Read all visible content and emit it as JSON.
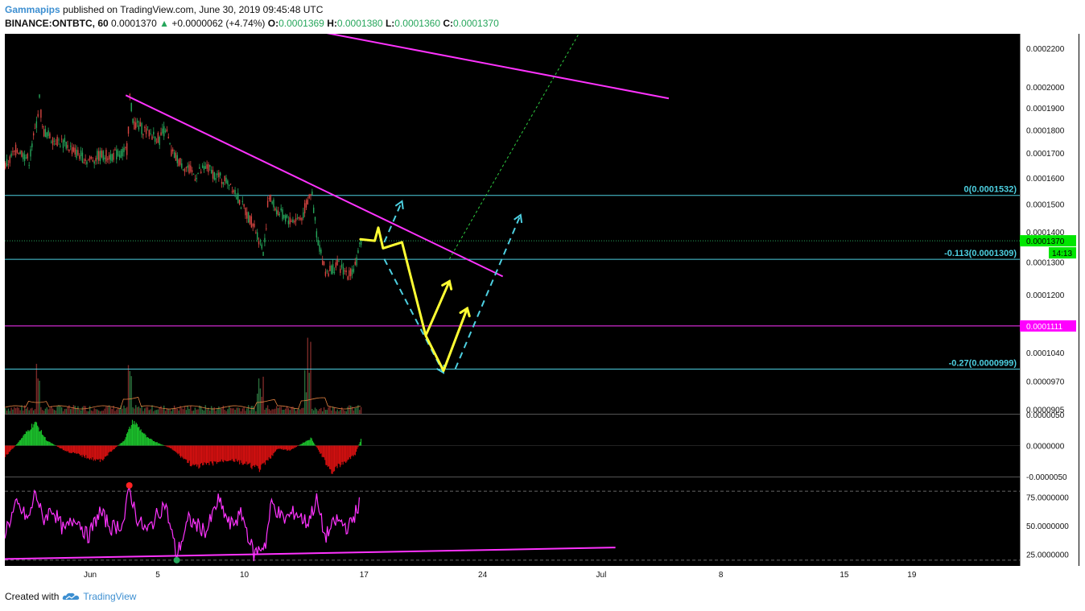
{
  "header": {
    "author": "Gammapips",
    "published_text": "published on TradingView.com, June 30, 2019 09:45:48 UTC",
    "symbol": "BINANCE:ONTBTC, 60",
    "last": "0.0001370",
    "change_arrow": "▲",
    "change": "+0.0000062 (+4.74%)",
    "o_label": "O:",
    "o_value": "0.0001369",
    "h_label": "H:",
    "h_value": "0.0001380",
    "l_label": "L:",
    "l_value": "0.0001360",
    "c_label": "C:",
    "c_value": "0.0001370"
  },
  "footer": {
    "created_with": "Created with",
    "brand": "TradingView",
    "logo_icon": "tradingview-cloud-icon"
  },
  "colors": {
    "background": "#000000",
    "up": "#26a65b",
    "down": "#d64541",
    "magenta": "#ff33ff",
    "teal": "#4dd0e1",
    "yellow": "#ffff33",
    "green_dotted": "#2ecc40",
    "label_green": "#00e600",
    "label_magenta": "#ff00ff"
  },
  "chart_data": [
    {
      "type": "line",
      "pane": "price",
      "scale": "log",
      "ylim": [
        8.95e-05,
        0.000228
      ],
      "y_tick_labels": [
        "0.0002200",
        "0.0002000",
        "0.0001900",
        "0.0001800",
        "0.0001700",
        "0.0001600",
        "0.0001500",
        "0.0001400",
        "0.0001300",
        "0.0001200",
        "0.0001040",
        "0.0000970",
        "0.0000905"
      ],
      "x_ticks": [
        "Jun",
        "5",
        "10",
        "17",
        "24",
        "Jul",
        "8",
        "15",
        "19"
      ],
      "current_price_label": "0.0001370",
      "countdown_label": "14:13",
      "level_label": "0.0001111",
      "fib_levels": [
        {
          "name": "0",
          "label": "0(0.0001532)",
          "value": 0.0001532
        },
        {
          "name": "-0.113",
          "label": "-0.113(0.0001309)",
          "value": 0.0001309
        },
        {
          "name": "-0.27",
          "label": "-0.27(0.0000999)",
          "value": 9.99e-05
        }
      ],
      "horizontal_line": 0.0001111,
      "price_path": [
        {
          "day": 0,
          "value": 0.0001645
        },
        {
          "day": 1,
          "value": 0.000172
        },
        {
          "day": 2,
          "value": 0.000167
        },
        {
          "day": 2.6,
          "value": 0.000182
        },
        {
          "day": 2.9,
          "value": 0.000195
        },
        {
          "day": 3.1,
          "value": 0.00018
        },
        {
          "day": 4,
          "value": 0.000176
        },
        {
          "day": 5,
          "value": 0.000174
        },
        {
          "day": 6,
          "value": 0.00017
        },
        {
          "day": 7,
          "value": 0.000167
        },
        {
          "day": 8,
          "value": 0.000169
        },
        {
          "day": 9,
          "value": 0.000169
        },
        {
          "day": 10,
          "value": 0.00017
        },
        {
          "day": 10.3,
          "value": 0.000172
        },
        {
          "day": 10.5,
          "value": 0.000195
        },
        {
          "day": 10.8,
          "value": 0.000183
        },
        {
          "day": 12,
          "value": 0.000179
        },
        {
          "day": 13,
          "value": 0.000176
        },
        {
          "day": 13.5,
          "value": 0.000181
        },
        {
          "day": 14,
          "value": 0.00017
        },
        {
          "day": 15,
          "value": 0.000165
        },
        {
          "day": 16,
          "value": 0.000161
        },
        {
          "day": 17,
          "value": 0.000164
        },
        {
          "day": 18,
          "value": 0.00016
        },
        {
          "day": 19,
          "value": 0.000158
        },
        {
          "day": 20,
          "value": 0.000149
        },
        {
          "day": 21,
          "value": 0.000142
        },
        {
          "day": 21.8,
          "value": 0.000133
        },
        {
          "day": 22.2,
          "value": 0.000153
        },
        {
          "day": 23,
          "value": 0.000147
        },
        {
          "day": 24,
          "value": 0.000144
        },
        {
          "day": 25,
          "value": 0.000145
        },
        {
          "day": 25.8,
          "value": 0.000155
        },
        {
          "day": 26.3,
          "value": 0.000138
        },
        {
          "day": 27,
          "value": 0.000127
        },
        {
          "day": 28,
          "value": 0.000129
        },
        {
          "day": 29,
          "value": 0.000126
        },
        {
          "day": 29.7,
          "value": 0.000131
        },
        {
          "day": 30,
          "value": 0.000137
        }
      ],
      "trendlines": [
        {
          "name": "descending-resistance",
          "from": {
            "day": 10.2,
            "value": 0.000196
          },
          "to": {
            "day": 42,
            "value": 0.0001255
          }
        },
        {
          "name": "upper-resistance",
          "from": {
            "day": 26.7,
            "value": 0.000229
          },
          "to": {
            "day": 56,
            "value": 0.0001945
          }
        }
      ],
      "projection_path": [
        {
          "day": 30,
          "value": 0.0001375
        },
        {
          "day": 31.2,
          "value": 0.000137
        },
        {
          "day": 31.5,
          "value": 0.0001415
        },
        {
          "day": 31.9,
          "value": 0.0001345
        },
        {
          "day": 33.5,
          "value": 0.0001365
        },
        {
          "day": 35.5,
          "value": 0.0001085
        },
        {
          "day": 37.5,
          "value": 0.000124
        },
        {
          "day": 35.5,
          "value": 0.0001085
        },
        {
          "day": 37,
          "value": 9.95e-05
        },
        {
          "day": 39,
          "value": 0.000116
        }
      ],
      "dashed_arrows": [
        {
          "from": {
            "day": 32,
            "value": 0.0001365
          },
          "to": {
            "day": 33.5,
            "value": 0.000151
          }
        },
        {
          "from": {
            "day": 32,
            "value": 0.000131
          },
          "to": {
            "day": 37,
            "value": 9.9e-05
          }
        },
        {
          "from": {
            "day": 38,
            "value": 0.0001
          },
          "to": {
            "day": 43.5,
            "value": 0.000146
          }
        }
      ],
      "green_dotted_path": {
        "from": {
          "day": 37.5,
          "value": 0.000131
        },
        "to": {
          "day": 48.5,
          "value": 0.000229
        }
      }
    },
    {
      "type": "bar",
      "pane": "oscillator",
      "ylim": [
        -5e-06,
        5e-06
      ],
      "y_tick_labels": [
        "0.0000050",
        "0.0000000",
        "-0.0000050"
      ],
      "profile": [
        {
          "day": 0,
          "value": -1.8e-06
        },
        {
          "day": 1,
          "value": 3e-07
        },
        {
          "day": 2.5,
          "value": 3.8e-06
        },
        {
          "day": 3.5,
          "value": 8e-07
        },
        {
          "day": 5,
          "value": -8e-07
        },
        {
          "day": 8,
          "value": -2.5e-06
        },
        {
          "day": 10,
          "value": 8e-07
        },
        {
          "day": 10.8,
          "value": 4e-06
        },
        {
          "day": 12,
          "value": 1.2e-06
        },
        {
          "day": 14,
          "value": -5e-07
        },
        {
          "day": 16,
          "value": -3.5e-06
        },
        {
          "day": 19,
          "value": -2.2e-06
        },
        {
          "day": 21.5,
          "value": -3.8e-06
        },
        {
          "day": 23,
          "value": -5e-07
        },
        {
          "day": 24,
          "value": -8e-07
        },
        {
          "day": 25.8,
          "value": 1.2e-06
        },
        {
          "day": 27.5,
          "value": -4.2e-06
        },
        {
          "day": 29.5,
          "value": -1.5e-06
        },
        {
          "day": 30,
          "value": 1e-06
        }
      ]
    },
    {
      "type": "line",
      "pane": "rsi",
      "ylim": [
        15,
        92
      ],
      "y_tick_labels": [
        "75.0000000",
        "50.0000000",
        "25.0000000"
      ],
      "bands": [
        80,
        20
      ],
      "trendline": {
        "from": {
          "day": 0,
          "value": 21
        },
        "to": {
          "day": 51.5,
          "value": 31
        }
      },
      "profile": [
        {
          "day": 0,
          "value": 45
        },
        {
          "day": 1,
          "value": 68
        },
        {
          "day": 2,
          "value": 55
        },
        {
          "day": 2.6,
          "value": 80
        },
        {
          "day": 3.2,
          "value": 55
        },
        {
          "day": 4,
          "value": 65
        },
        {
          "day": 5,
          "value": 45
        },
        {
          "day": 6,
          "value": 58
        },
        {
          "day": 7,
          "value": 40
        },
        {
          "day": 8,
          "value": 62
        },
        {
          "day": 9,
          "value": 48
        },
        {
          "day": 10,
          "value": 52
        },
        {
          "day": 10.5,
          "value": 82
        },
        {
          "day": 11.2,
          "value": 55
        },
        {
          "day": 12,
          "value": 45
        },
        {
          "day": 13.5,
          "value": 70
        },
        {
          "day": 14.5,
          "value": 24
        },
        {
          "day": 15.5,
          "value": 55
        },
        {
          "day": 17,
          "value": 45
        },
        {
          "day": 18,
          "value": 72
        },
        {
          "day": 19,
          "value": 50
        },
        {
          "day": 20,
          "value": 60
        },
        {
          "day": 21,
          "value": 25
        },
        {
          "day": 22,
          "value": 35
        },
        {
          "day": 22.5,
          "value": 70
        },
        {
          "day": 23.5,
          "value": 55
        },
        {
          "day": 24.5,
          "value": 62
        },
        {
          "day": 25.5,
          "value": 52
        },
        {
          "day": 26.3,
          "value": 72
        },
        {
          "day": 27,
          "value": 40
        },
        {
          "day": 28,
          "value": 55
        },
        {
          "day": 29,
          "value": 48
        },
        {
          "day": 30,
          "value": 71
        }
      ],
      "markers": [
        {
          "name": "overbought-dot",
          "day": 10.5,
          "value": 85,
          "color": "#ff2222"
        },
        {
          "name": "oversold-dot",
          "day": 14.5,
          "value": 20,
          "color": "#26a65b"
        }
      ]
    }
  ]
}
